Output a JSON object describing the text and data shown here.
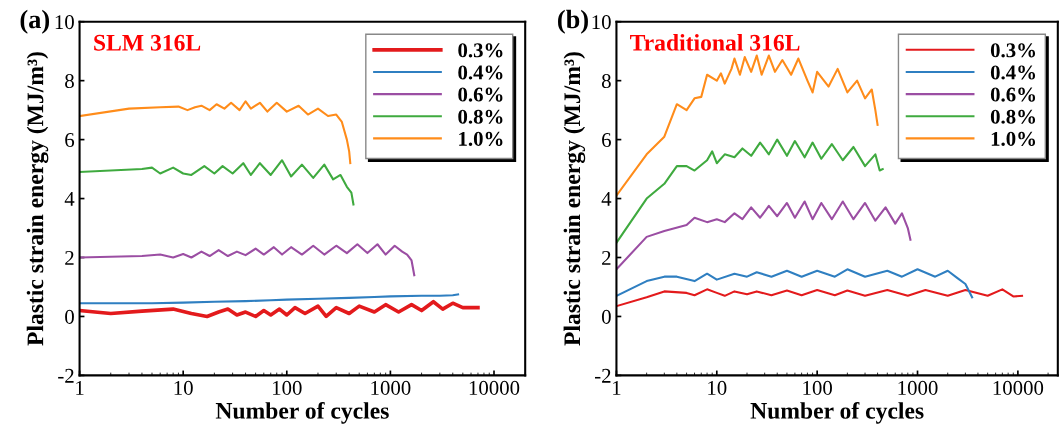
{
  "chart_data": [
    {
      "type": "line",
      "title": "SLM 316L",
      "annotations": [
        "(a)"
      ],
      "xlabel": "Number of cycles",
      "ylabel": "Plastic strain energy (MJ/m³)",
      "log": "x",
      "xlim": [
        1,
        20000
      ],
      "xticks": [
        1,
        10,
        100,
        1000,
        10000
      ],
      "ylim": [
        -2,
        10
      ],
      "yticks": [
        -2,
        0,
        2,
        4,
        6,
        8,
        10
      ],
      "grid": false,
      "legend": "top right",
      "marker": "none",
      "line_style": "solid",
      "series": [
        {
          "name": "0.3%",
          "color": "#e31a1c",
          "x": [
            1,
            2,
            4,
            8,
            12,
            17,
            22,
            27,
            33,
            40,
            50,
            60,
            70,
            85,
            100,
            120,
            150,
            200,
            240,
            300,
            400,
            500,
            700,
            900,
            1200,
            1600,
            2000,
            2600,
            3200,
            4000,
            5000,
            7000
          ],
          "values": [
            0.2,
            0.1,
            0.18,
            0.25,
            0.1,
            0.0,
            0.15,
            0.25,
            0.05,
            0.15,
            0.0,
            0.2,
            0.05,
            0.25,
            0.05,
            0.3,
            0.1,
            0.35,
            0.0,
            0.3,
            0.1,
            0.35,
            0.15,
            0.4,
            0.15,
            0.4,
            0.2,
            0.5,
            0.25,
            0.45,
            0.3,
            0.3
          ]
        },
        {
          "name": "0.4%",
          "color": "#2f7fc1",
          "x": [
            1,
            5,
            10,
            20,
            40,
            70,
            100,
            200,
            400,
            700,
            1000,
            2000,
            3000,
            4000,
            4500
          ],
          "values": [
            0.45,
            0.45,
            0.47,
            0.5,
            0.52,
            0.55,
            0.57,
            0.6,
            0.63,
            0.66,
            0.68,
            0.7,
            0.7,
            0.72,
            0.75
          ]
        },
        {
          "name": "0.6%",
          "color": "#9b4ea3",
          "x": [
            1,
            4,
            6,
            8,
            10,
            12,
            15,
            18,
            22,
            27,
            33,
            40,
            50,
            60,
            75,
            90,
            110,
            140,
            180,
            230,
            300,
            380,
            480,
            600,
            750,
            900,
            1100,
            1300,
            1450,
            1600,
            1700
          ],
          "values": [
            2.0,
            2.05,
            2.1,
            2.0,
            2.12,
            2.0,
            2.2,
            2.05,
            2.25,
            2.05,
            2.2,
            2.08,
            2.3,
            2.1,
            2.35,
            2.1,
            2.35,
            2.1,
            2.4,
            2.1,
            2.4,
            2.15,
            2.45,
            2.15,
            2.45,
            2.1,
            2.4,
            2.2,
            2.1,
            1.9,
            1.4
          ]
        },
        {
          "name": "0.8%",
          "color": "#3faa3f",
          "x": [
            1,
            4,
            5,
            6,
            8,
            10,
            12,
            16,
            20,
            24,
            30,
            38,
            45,
            55,
            70,
            90,
            110,
            140,
            180,
            230,
            280,
            330,
            380,
            420,
            440
          ],
          "values": [
            4.9,
            5.0,
            5.05,
            4.85,
            5.05,
            4.85,
            4.8,
            5.1,
            4.85,
            5.1,
            4.85,
            5.2,
            4.8,
            5.2,
            4.8,
            5.3,
            4.75,
            5.15,
            4.7,
            5.15,
            4.65,
            4.8,
            4.4,
            4.2,
            3.8
          ]
        },
        {
          "name": "1.0%",
          "color": "#ff8c1a",
          "x": [
            1,
            3,
            6,
            9,
            11,
            13,
            15,
            18,
            21,
            25,
            29,
            35,
            40,
            45,
            55,
            65,
            80,
            100,
            130,
            160,
            200,
            250,
            300,
            340,
            380,
            400,
            410
          ],
          "values": [
            6.8,
            7.05,
            7.1,
            7.12,
            7.0,
            7.1,
            7.15,
            7.0,
            7.2,
            7.05,
            7.25,
            7.0,
            7.3,
            7.05,
            7.25,
            6.95,
            7.25,
            6.95,
            7.15,
            6.85,
            7.05,
            6.8,
            6.85,
            6.6,
            6.0,
            5.6,
            5.2
          ]
        }
      ]
    },
    {
      "type": "line",
      "title": "Traditional 316L",
      "annotations": [
        "(b)"
      ],
      "xlabel": "Number of cycles",
      "ylabel": "Plastic strain energy (MJ/m³)",
      "log": "x",
      "xlim": [
        1,
        25000
      ],
      "xticks": [
        1,
        10,
        100,
        1000,
        10000
      ],
      "ylim": [
        -2,
        10
      ],
      "yticks": [
        -2,
        0,
        2,
        4,
        6,
        8,
        10
      ],
      "grid": false,
      "legend": "top right",
      "marker": "none",
      "line_style": "solid",
      "series": [
        {
          "name": "0.3%",
          "color": "#e31a1c",
          "x": [
            1,
            2,
            3,
            5,
            6,
            8,
            10,
            12,
            15,
            20,
            25,
            35,
            50,
            70,
            100,
            150,
            200,
            300,
            500,
            800,
            1200,
            2000,
            3000,
            5000,
            7000,
            9000,
            11000
          ],
          "values": [
            0.35,
            0.65,
            0.85,
            0.8,
            0.72,
            0.92,
            0.8,
            0.7,
            0.85,
            0.75,
            0.85,
            0.72,
            0.88,
            0.72,
            0.9,
            0.72,
            0.88,
            0.7,
            0.9,
            0.7,
            0.9,
            0.7,
            0.9,
            0.7,
            0.92,
            0.68,
            0.7
          ]
        },
        {
          "name": "0.4%",
          "color": "#2f7fc1",
          "x": [
            1,
            2,
            3,
            4,
            6,
            8,
            10,
            15,
            20,
            25,
            35,
            50,
            70,
            100,
            150,
            200,
            300,
            500,
            700,
            1000,
            1500,
            2000,
            2500,
            3000,
            3500
          ],
          "values": [
            0.7,
            1.2,
            1.35,
            1.35,
            1.2,
            1.45,
            1.25,
            1.45,
            1.35,
            1.5,
            1.35,
            1.55,
            1.35,
            1.55,
            1.35,
            1.6,
            1.35,
            1.55,
            1.35,
            1.6,
            1.35,
            1.55,
            1.3,
            1.1,
            0.65
          ]
        },
        {
          "name": "0.6%",
          "color": "#9b4ea3",
          "x": [
            1,
            2,
            3,
            5,
            6,
            8,
            10,
            12,
            15,
            18,
            22,
            27,
            33,
            40,
            50,
            60,
            75,
            90,
            110,
            140,
            180,
            230,
            300,
            380,
            480,
            600,
            700,
            800,
            850
          ],
          "values": [
            1.6,
            2.7,
            2.9,
            3.1,
            3.35,
            3.2,
            3.3,
            3.2,
            3.5,
            3.3,
            3.7,
            3.35,
            3.75,
            3.4,
            3.85,
            3.35,
            3.9,
            3.3,
            3.85,
            3.3,
            3.9,
            3.3,
            3.85,
            3.25,
            3.7,
            3.15,
            3.5,
            3.0,
            2.6
          ]
        },
        {
          "name": "0.8%",
          "color": "#3faa3f",
          "x": [
            1,
            2,
            3,
            4,
            5,
            6,
            8,
            9,
            10,
            12,
            15,
            18,
            22,
            27,
            33,
            40,
            50,
            60,
            75,
            90,
            110,
            140,
            180,
            230,
            300,
            380,
            420,
            450
          ],
          "values": [
            2.5,
            4.0,
            4.5,
            5.1,
            5.1,
            4.95,
            5.3,
            5.6,
            5.2,
            5.5,
            5.4,
            5.7,
            5.45,
            5.9,
            5.5,
            6.0,
            5.45,
            5.95,
            5.4,
            5.9,
            5.35,
            5.85,
            5.3,
            5.75,
            5.1,
            5.5,
            4.95,
            5.0
          ]
        },
        {
          "name": "1.0%",
          "color": "#ff8c1a",
          "x": [
            1,
            2,
            3,
            4,
            5,
            6,
            7,
            8,
            10,
            11,
            12,
            14,
            15,
            17,
            19,
            22,
            25,
            28,
            33,
            38,
            45,
            55,
            65,
            80,
            90,
            100,
            130,
            160,
            200,
            250,
            300,
            350,
            380,
            400
          ],
          "values": [
            4.1,
            5.5,
            6.1,
            7.2,
            7.0,
            7.4,
            7.45,
            8.2,
            8.0,
            8.25,
            7.9,
            8.4,
            8.75,
            8.2,
            8.8,
            8.3,
            8.85,
            8.2,
            8.85,
            8.3,
            8.7,
            8.2,
            8.75,
            8.0,
            7.6,
            8.3,
            7.8,
            8.4,
            7.6,
            8.0,
            7.4,
            7.7,
            7.0,
            6.5
          ]
        }
      ]
    }
  ]
}
